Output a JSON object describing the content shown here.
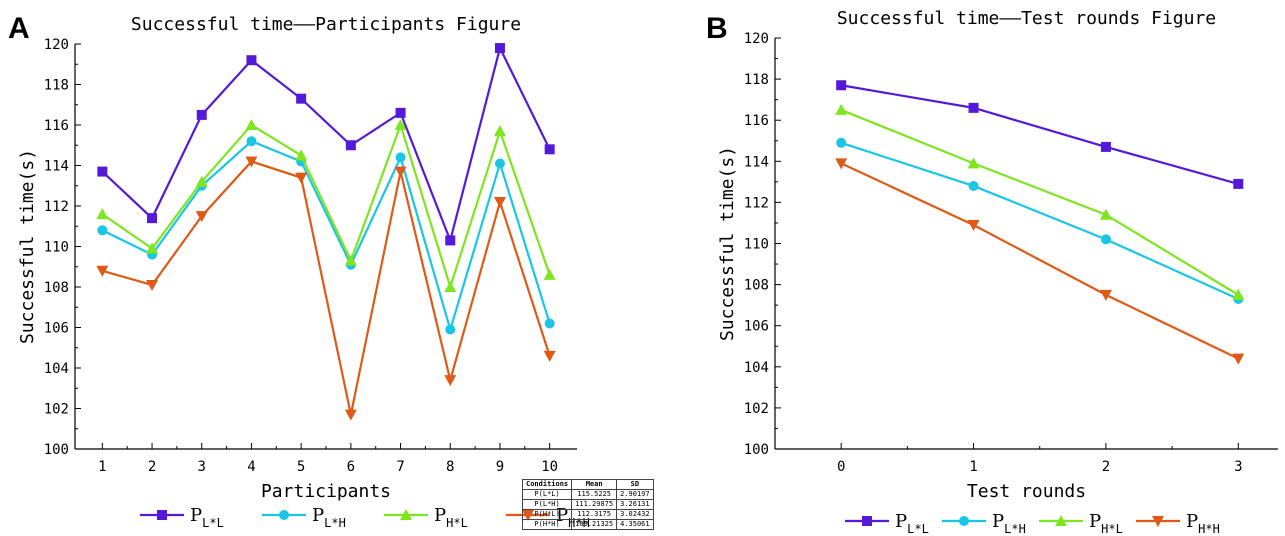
{
  "panels": {
    "a_letter": "A",
    "b_letter": "B"
  },
  "colors": {
    "PLL": "#5519d9",
    "PLH": "#19c6e6",
    "PHL": "#7ee61e",
    "PHH": "#e05a17"
  },
  "chart_data": [
    {
      "type": "line",
      "title": "Successful time——Participants Figure",
      "xlabel": "Participants",
      "ylabel": "Successful time(s)",
      "x": [
        1,
        2,
        3,
        4,
        5,
        6,
        7,
        8,
        9,
        10
      ],
      "ylim": [
        100,
        120
      ],
      "yticks": [
        100,
        102,
        104,
        106,
        108,
        110,
        112,
        114,
        116,
        118,
        120
      ],
      "series": [
        {
          "key": "PLL",
          "base": "P",
          "sub": "L*L",
          "marker": "square",
          "values": [
            113.7,
            111.4,
            116.5,
            119.2,
            117.3,
            115.0,
            116.6,
            110.3,
            119.8,
            114.8
          ]
        },
        {
          "key": "PLH",
          "base": "P",
          "sub": "L*H",
          "marker": "circle",
          "values": [
            110.8,
            109.6,
            113.0,
            115.2,
            114.2,
            109.1,
            114.4,
            105.9,
            114.1,
            106.2
          ]
        },
        {
          "key": "PHL",
          "base": "P",
          "sub": "H*L",
          "marker": "triangle-up",
          "values": [
            111.6,
            109.9,
            113.2,
            116.0,
            114.5,
            109.3,
            116.0,
            108.0,
            115.7,
            108.6
          ]
        },
        {
          "key": "PHH",
          "base": "P",
          "sub": "H*H",
          "marker": "triangle-down",
          "values": [
            108.8,
            108.1,
            111.5,
            114.2,
            113.4,
            101.7,
            113.7,
            103.4,
            112.2,
            104.6
          ]
        }
      ],
      "table": {
        "headers": [
          "Conditions",
          "Mean",
          "SD"
        ],
        "rows": [
          [
            "P(L*L)",
            "115.5225",
            "2.90197"
          ],
          [
            "P(L*H)",
            "111.29875",
            "3.26131"
          ],
          [
            "P(H*L)",
            "112.3175",
            "3.02432"
          ],
          [
            "P(H*H)",
            "109.21325",
            "4.35061"
          ]
        ]
      }
    },
    {
      "type": "line",
      "title": "Successful time——Test rounds Figure",
      "xlabel": "Test rounds",
      "ylabel": "Successful time(s)",
      "x": [
        0,
        1,
        2,
        3
      ],
      "xlim": [
        -0.5,
        3.3
      ],
      "ylim": [
        100,
        120
      ],
      "yticks": [
        100,
        102,
        104,
        106,
        108,
        110,
        112,
        114,
        116,
        118,
        120
      ],
      "series": [
        {
          "key": "PLL",
          "base": "P",
          "sub": "L*L",
          "marker": "square",
          "values": [
            117.7,
            116.6,
            114.7,
            112.9
          ]
        },
        {
          "key": "PLH",
          "base": "P",
          "sub": "L*H",
          "marker": "circle",
          "values": [
            114.9,
            112.8,
            110.2,
            107.3
          ]
        },
        {
          "key": "PHL",
          "base": "P",
          "sub": "H*L",
          "marker": "triangle-up",
          "values": [
            116.5,
            113.9,
            111.4,
            107.5
          ]
        },
        {
          "key": "PHH",
          "base": "P",
          "sub": "H*H",
          "marker": "triangle-down",
          "values": [
            113.9,
            110.9,
            107.5,
            104.4
          ]
        }
      ]
    }
  ]
}
